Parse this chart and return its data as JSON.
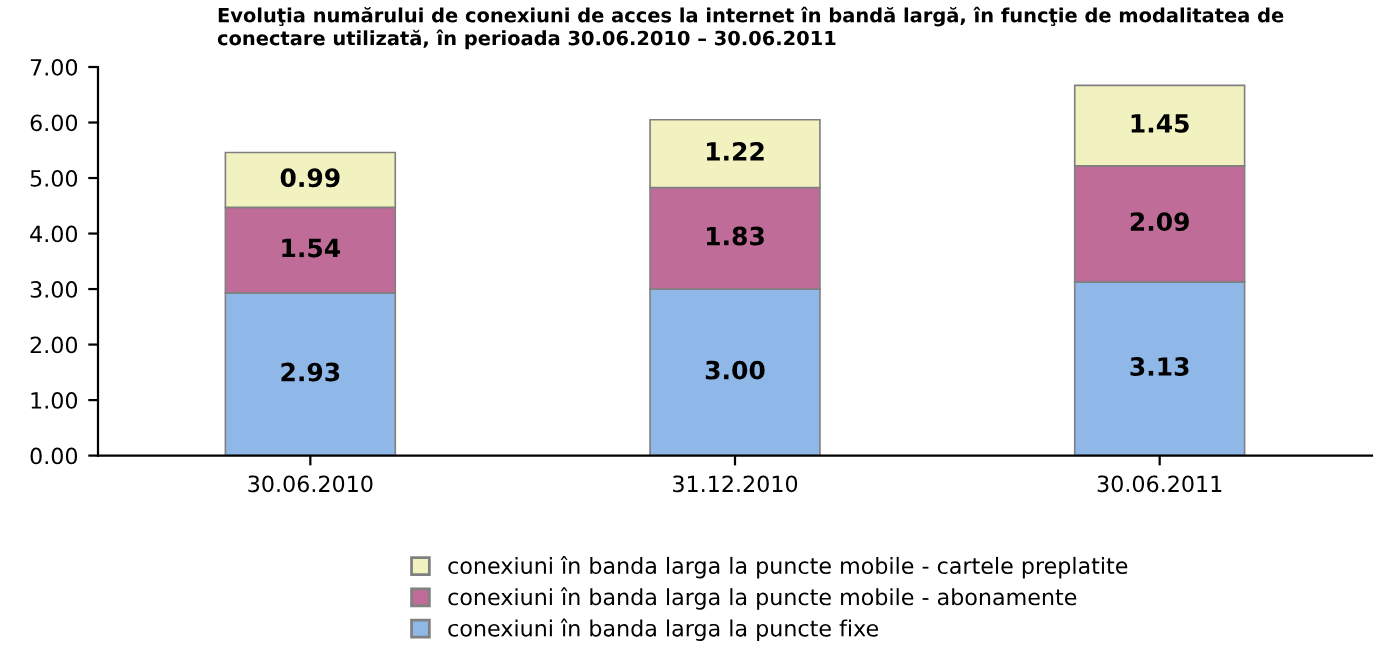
{
  "chart_data": {
    "type": "bar",
    "stacked": true,
    "title": "Evoluţia numărului de conexiuni de acces la internet în bandă largă, în funcţie de modalitatea de conectare utilizată, în perioada 30.06.2010 – 30.06.2011",
    "categories": [
      "30.06.2010",
      "31.12.2010",
      "30.06.2011"
    ],
    "series": [
      {
        "name": "conexiuni în banda larga la puncte fixe",
        "color": "#8fb8e8",
        "values": [
          2.93,
          3.0,
          3.13
        ],
        "value_labels": [
          "2.93",
          "3.00",
          "3.13"
        ]
      },
      {
        "name": "conexiuni în banda larga la puncte mobile - abonamente",
        "color": "#c06c98",
        "values": [
          1.54,
          1.83,
          2.09
        ],
        "value_labels": [
          "1.54",
          "1.83",
          "2.09"
        ]
      },
      {
        "name": "conexiuni în banda larga la puncte mobile - cartele preplatite",
        "color": "#f2f2c0",
        "values": [
          0.99,
          1.22,
          1.45
        ],
        "value_labels": [
          "0.99",
          "1.22",
          "1.45"
        ]
      }
    ],
    "ylim": [
      0,
      7
    ],
    "yticks": [
      {
        "value": 0,
        "label": "0.00"
      },
      {
        "value": 1,
        "label": "1.00"
      },
      {
        "value": 2,
        "label": "2.00"
      },
      {
        "value": 3,
        "label": "3.00"
      },
      {
        "value": 4,
        "label": "4.00"
      },
      {
        "value": 5,
        "label": "5.00"
      },
      {
        "value": 6,
        "label": "6.00"
      },
      {
        "value": 7,
        "label": "7.00"
      }
    ],
    "legend": "bottom",
    "grid": false
  }
}
